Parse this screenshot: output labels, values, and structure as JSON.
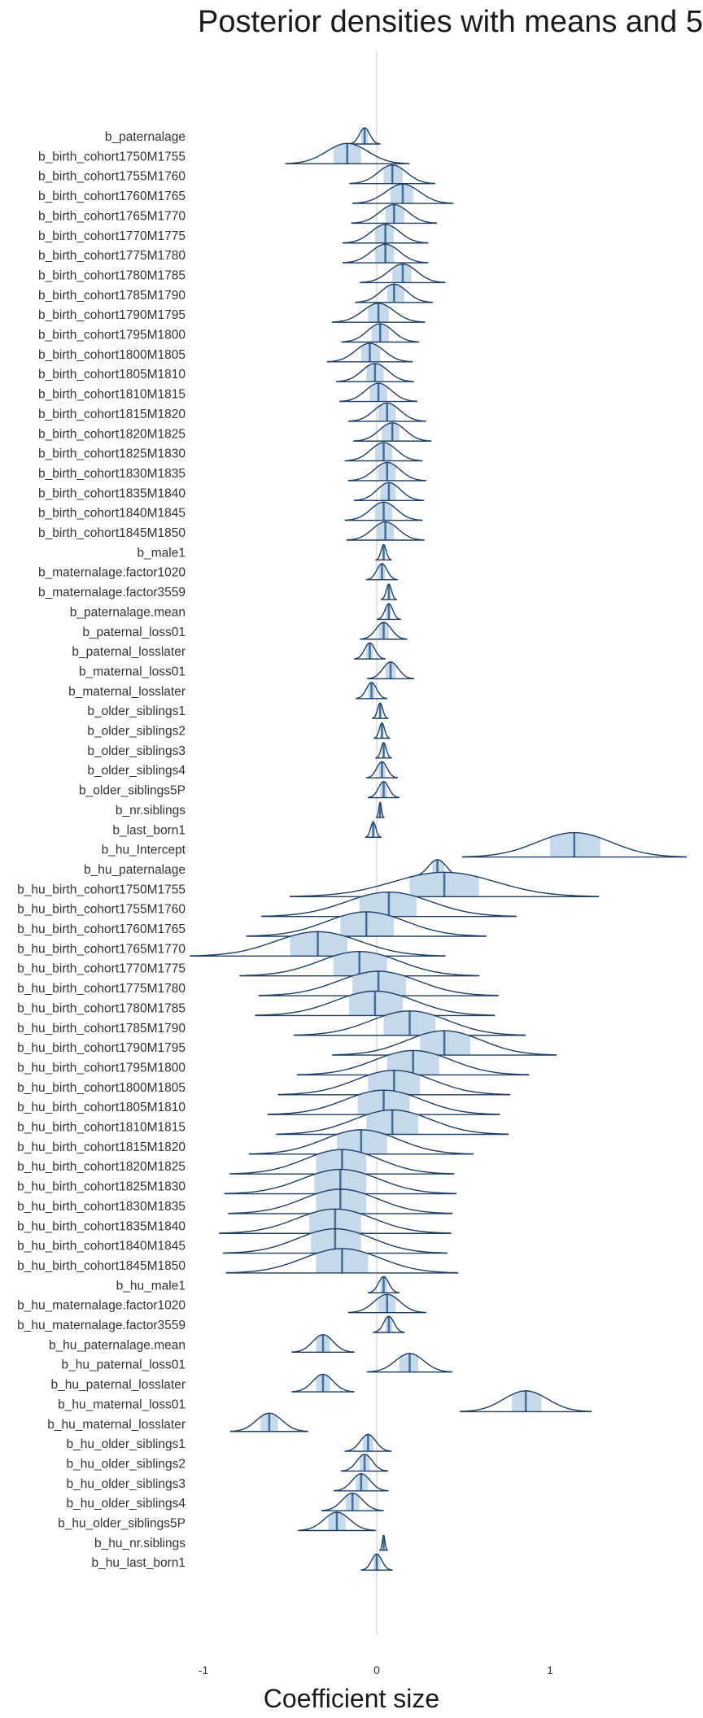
{
  "chart_data": {
    "type": "area",
    "title": "Posterior densities with means and 5",
    "xlabel": "Coefficient size",
    "ylabel": "",
    "xlim": [
      -1,
      1.5
    ],
    "xticks": [
      -1,
      0,
      1
    ],
    "xtick_labels": [
      "-1",
      "0",
      "1"
    ],
    "grid": false,
    "reference_line_x": 0,
    "colors": {
      "outline": "#1f3f66",
      "interval_fill": "#c6d9ea",
      "mean_line": "#3e6f9f",
      "zero_line": "#d9d9d9",
      "text": "#333333"
    },
    "parameters": [
      {
        "name": "b_paternalage",
        "mean": -0.07,
        "lo": -0.09,
        "hi": -0.05
      },
      {
        "name": "b_birth_cohort1750M1755",
        "mean": -0.17,
        "lo": -0.25,
        "hi": -0.09
      },
      {
        "name": "b_birth_cohort1755M1760",
        "mean": 0.09,
        "lo": 0.04,
        "hi": 0.15
      },
      {
        "name": "b_birth_cohort1760M1765",
        "mean": 0.15,
        "lo": 0.08,
        "hi": 0.21
      },
      {
        "name": "b_birth_cohort1765M1770",
        "mean": 0.1,
        "lo": 0.05,
        "hi": 0.16
      },
      {
        "name": "b_birth_cohort1770M1775",
        "mean": 0.05,
        "lo": -0.01,
        "hi": 0.1
      },
      {
        "name": "b_birth_cohort1775M1780",
        "mean": 0.05,
        "lo": -0.01,
        "hi": 0.1
      },
      {
        "name": "b_birth_cohort1780M1785",
        "mean": 0.15,
        "lo": 0.09,
        "hi": 0.2
      },
      {
        "name": "b_birth_cohort1785M1790",
        "mean": 0.1,
        "lo": 0.06,
        "hi": 0.16
      },
      {
        "name": "b_birth_cohort1790M1795",
        "mean": 0.01,
        "lo": -0.05,
        "hi": 0.07
      },
      {
        "name": "b_birth_cohort1795M1800",
        "mean": 0.02,
        "lo": -0.03,
        "hi": 0.07
      },
      {
        "name": "b_birth_cohort1800M1805",
        "mean": -0.04,
        "lo": -0.09,
        "hi": 0.02
      },
      {
        "name": "b_birth_cohort1805M1810",
        "mean": -0.01,
        "lo": -0.06,
        "hi": 0.04
      },
      {
        "name": "b_birth_cohort1810M1815",
        "mean": 0.01,
        "lo": -0.04,
        "hi": 0.06
      },
      {
        "name": "b_birth_cohort1815M1820",
        "mean": 0.06,
        "lo": 0.01,
        "hi": 0.11
      },
      {
        "name": "b_birth_cohort1820M1825",
        "mean": 0.09,
        "lo": 0.03,
        "hi": 0.13
      },
      {
        "name": "b_birth_cohort1825M1830",
        "mean": 0.04,
        "lo": -0.01,
        "hi": 0.09
      },
      {
        "name": "b_birth_cohort1830M1835",
        "mean": 0.06,
        "lo": 0.01,
        "hi": 0.11
      },
      {
        "name": "b_birth_cohort1835M1840",
        "mean": 0.07,
        "lo": 0.02,
        "hi": 0.11
      },
      {
        "name": "b_birth_cohort1840M1845",
        "mean": 0.04,
        "lo": -0.01,
        "hi": 0.09
      },
      {
        "name": "b_birth_cohort1845M1850",
        "mean": 0.05,
        "lo": 0.0,
        "hi": 0.1
      },
      {
        "name": "b_male1",
        "mean": 0.04,
        "lo": 0.03,
        "hi": 0.05
      },
      {
        "name": "b_maternalage.factor1020",
        "mean": 0.03,
        "lo": 0.01,
        "hi": 0.05
      },
      {
        "name": "b_maternalage.factor3559",
        "mean": 0.07,
        "lo": 0.06,
        "hi": 0.08
      },
      {
        "name": "b_paternalage.mean",
        "mean": 0.07,
        "lo": 0.05,
        "hi": 0.08
      },
      {
        "name": "b_paternal_loss01",
        "mean": 0.04,
        "lo": 0.01,
        "hi": 0.07
      },
      {
        "name": "b_paternal_losslater",
        "mean": -0.04,
        "lo": -0.06,
        "hi": -0.02
      },
      {
        "name": "b_maternal_loss01",
        "mean": 0.08,
        "lo": 0.05,
        "hi": 0.11
      },
      {
        "name": "b_maternal_losslater",
        "mean": -0.03,
        "lo": -0.05,
        "hi": -0.01
      },
      {
        "name": "b_older_siblings1",
        "mean": 0.02,
        "lo": 0.01,
        "hi": 0.03
      },
      {
        "name": "b_older_siblings2",
        "mean": 0.03,
        "lo": 0.02,
        "hi": 0.04
      },
      {
        "name": "b_older_siblings3",
        "mean": 0.04,
        "lo": 0.03,
        "hi": 0.05
      },
      {
        "name": "b_older_siblings4",
        "mean": 0.03,
        "lo": 0.01,
        "hi": 0.05
      },
      {
        "name": "b_older_siblings5P",
        "mean": 0.04,
        "lo": 0.02,
        "hi": 0.06
      },
      {
        "name": "b_nr.siblings",
        "mean": 0.02,
        "lo": 0.015,
        "hi": 0.025
      },
      {
        "name": "b_last_born1",
        "mean": -0.02,
        "lo": -0.03,
        "hi": -0.01
      },
      {
        "name": "b_hu_Intercept",
        "mean": 1.14,
        "lo": 1.0,
        "hi": 1.29
      },
      {
        "name": "b_hu_paternalage",
        "mean": 0.35,
        "lo": 0.32,
        "hi": 0.39
      },
      {
        "name": "b_hu_birth_cohort1750M1755",
        "mean": 0.39,
        "lo": 0.19,
        "hi": 0.59
      },
      {
        "name": "b_hu_birth_cohort1755M1760",
        "mean": 0.07,
        "lo": -0.1,
        "hi": 0.23
      },
      {
        "name": "b_hu_birth_cohort1760M1765",
        "mean": -0.06,
        "lo": -0.21,
        "hi": 0.1
      },
      {
        "name": "b_hu_birth_cohort1765M1770",
        "mean": -0.34,
        "lo": -0.5,
        "hi": -0.17
      },
      {
        "name": "b_hu_birth_cohort1770M1775",
        "mean": -0.1,
        "lo": -0.25,
        "hi": 0.06
      },
      {
        "name": "b_hu_birth_cohort1775M1780",
        "mean": 0.01,
        "lo": -0.14,
        "hi": 0.17
      },
      {
        "name": "b_hu_birth_cohort1780M1785",
        "mean": -0.01,
        "lo": -0.16,
        "hi": 0.15
      },
      {
        "name": "b_hu_birth_cohort1785M1790",
        "mean": 0.19,
        "lo": 0.04,
        "hi": 0.34
      },
      {
        "name": "b_hu_birth_cohort1790M1795",
        "mean": 0.39,
        "lo": 0.25,
        "hi": 0.54
      },
      {
        "name": "b_hu_birth_cohort1795M1800",
        "mean": 0.21,
        "lo": 0.06,
        "hi": 0.36
      },
      {
        "name": "b_hu_birth_cohort1800M1805",
        "mean": 0.1,
        "lo": -0.05,
        "hi": 0.25
      },
      {
        "name": "b_hu_birth_cohort1805M1810",
        "mean": 0.04,
        "lo": -0.11,
        "hi": 0.19
      },
      {
        "name": "b_hu_birth_cohort1810M1815",
        "mean": 0.09,
        "lo": -0.06,
        "hi": 0.24
      },
      {
        "name": "b_hu_birth_cohort1815M1820",
        "mean": -0.09,
        "lo": -0.23,
        "hi": 0.06
      },
      {
        "name": "b_hu_birth_cohort1820M1825",
        "mean": -0.2,
        "lo": -0.35,
        "hi": -0.06
      },
      {
        "name": "b_hu_birth_cohort1825M1830",
        "mean": -0.21,
        "lo": -0.36,
        "hi": -0.06
      },
      {
        "name": "b_hu_birth_cohort1830M1835",
        "mean": -0.21,
        "lo": -0.35,
        "hi": -0.06
      },
      {
        "name": "b_hu_birth_cohort1835M1840",
        "mean": -0.24,
        "lo": -0.39,
        "hi": -0.09
      },
      {
        "name": "b_hu_birth_cohort1840M1845",
        "mean": -0.24,
        "lo": -0.38,
        "hi": -0.09
      },
      {
        "name": "b_hu_birth_cohort1845M1850",
        "mean": -0.2,
        "lo": -0.35,
        "hi": -0.05
      },
      {
        "name": "b_hu_male1",
        "mean": 0.04,
        "lo": 0.02,
        "hi": 0.06
      },
      {
        "name": "b_hu_maternalage.factor1020",
        "mean": 0.06,
        "lo": 0.01,
        "hi": 0.11
      },
      {
        "name": "b_hu_maternalage.factor3559",
        "mean": 0.07,
        "lo": 0.05,
        "hi": 0.09
      },
      {
        "name": "b_hu_paternalage.mean",
        "mean": -0.31,
        "lo": -0.35,
        "hi": -0.27
      },
      {
        "name": "b_hu_paternal_loss01",
        "mean": 0.19,
        "lo": 0.13,
        "hi": 0.24
      },
      {
        "name": "b_hu_paternal_losslater",
        "mean": -0.31,
        "lo": -0.35,
        "hi": -0.27
      },
      {
        "name": "b_hu_maternal_loss01",
        "mean": 0.86,
        "lo": 0.78,
        "hi": 0.95
      },
      {
        "name": "b_hu_maternal_losslater",
        "mean": -0.62,
        "lo": -0.67,
        "hi": -0.57
      },
      {
        "name": "b_hu_older_siblings1",
        "mean": -0.05,
        "lo": -0.08,
        "hi": -0.02
      },
      {
        "name": "b_hu_older_siblings2",
        "mean": -0.07,
        "lo": -0.1,
        "hi": -0.04
      },
      {
        "name": "b_hu_older_siblings3",
        "mean": -0.09,
        "lo": -0.12,
        "hi": -0.05
      },
      {
        "name": "b_hu_older_siblings4",
        "mean": -0.14,
        "lo": -0.18,
        "hi": -0.1
      },
      {
        "name": "b_hu_older_siblings5P",
        "mean": -0.23,
        "lo": -0.28,
        "hi": -0.18
      },
      {
        "name": "b_hu_nr.siblings",
        "mean": 0.04,
        "lo": 0.035,
        "hi": 0.045
      },
      {
        "name": "b_hu_last_born1",
        "mean": 0.0,
        "lo": -0.02,
        "hi": 0.02
      }
    ]
  }
}
